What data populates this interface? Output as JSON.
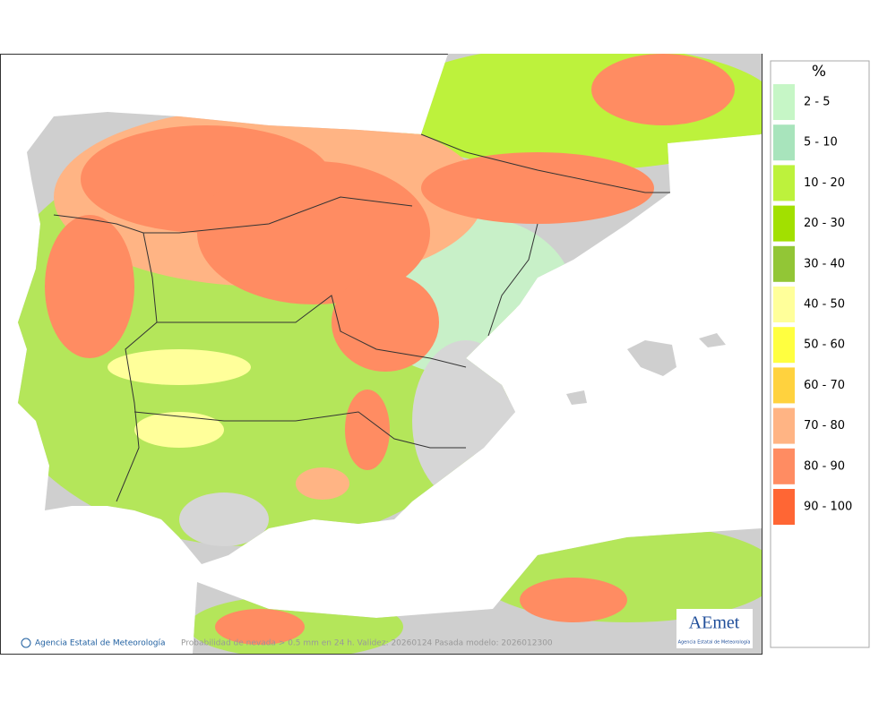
{
  "legend": {
    "title": "%",
    "items": [
      {
        "label": "2 - 5",
        "color": "#c6f6c6"
      },
      {
        "label": "5 - 10",
        "color": "#a8e4bc"
      },
      {
        "label": "10 - 20",
        "color": "#bdf23c"
      },
      {
        "label": "20 - 30",
        "color": "#a2e000"
      },
      {
        "label": "30 - 40",
        "color": "#92c636"
      },
      {
        "label": "40 - 50",
        "color": "#ffff9a"
      },
      {
        "label": "50 - 60",
        "color": "#ffff40"
      },
      {
        "label": "60 - 70",
        "color": "#ffd23e"
      },
      {
        "label": "70 - 80",
        "color": "#ffb484"
      },
      {
        "label": "80 - 90",
        "color": "#ff8c62"
      },
      {
        "label": "90 - 100",
        "color": "#ff6634"
      }
    ]
  },
  "footer": {
    "credit": "Agencia Estatal de Meteorología",
    "caption": "Probabilidad de nevada > 0.5 mm en 24 h. Validez: 20260124 Pasada modelo: 2026012300"
  },
  "logo": {
    "name": "AEmet",
    "subtitle": "Agencia Estatal de Meteorología"
  }
}
